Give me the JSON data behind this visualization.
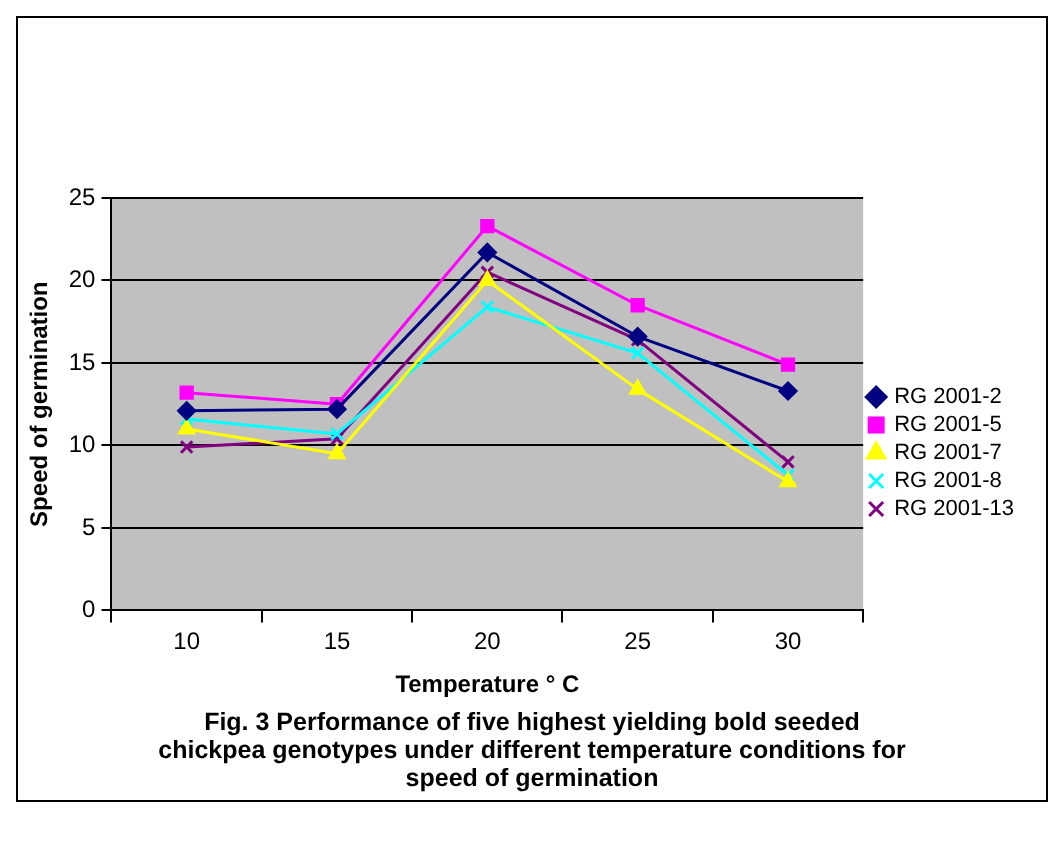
{
  "chart_data": {
    "type": "line",
    "title": "Fig. 3 Performance of five  highest yielding bold seeded chickpea genotypes under different temperature conditions for speed of germination",
    "xlabel": "Temperature ° C",
    "ylabel": "Speed of germination",
    "categories": [
      "10",
      "15",
      "20",
      "25",
      "30"
    ],
    "series": [
      {
        "name": "RG 2001-2",
        "color": "#000080",
        "marker": "diamond",
        "values": [
          12.1,
          12.2,
          21.7,
          16.6,
          13.3
        ]
      },
      {
        "name": "RG 2001-5",
        "color": "#ff00ff",
        "marker": "square",
        "values": [
          13.2,
          12.5,
          23.3,
          18.5,
          14.9
        ]
      },
      {
        "name": "RG 2001-7",
        "color": "#ffff00",
        "marker": "triangle",
        "values": [
          11.0,
          9.5,
          20.0,
          13.4,
          7.8
        ]
      },
      {
        "name": "RG 2001-8",
        "color": "#00ffff",
        "marker": "cross",
        "values": [
          11.6,
          10.7,
          18.4,
          15.6,
          8.2
        ]
      },
      {
        "name": "RG 2001-13",
        "color": "#800080",
        "marker": "cross",
        "values": [
          9.9,
          10.4,
          20.5,
          16.4,
          9.0
        ]
      }
    ],
    "ylim": [
      0,
      25
    ],
    "yticks": [
      0,
      5,
      10,
      15,
      20,
      25
    ],
    "grid": "y",
    "legend": "right"
  }
}
